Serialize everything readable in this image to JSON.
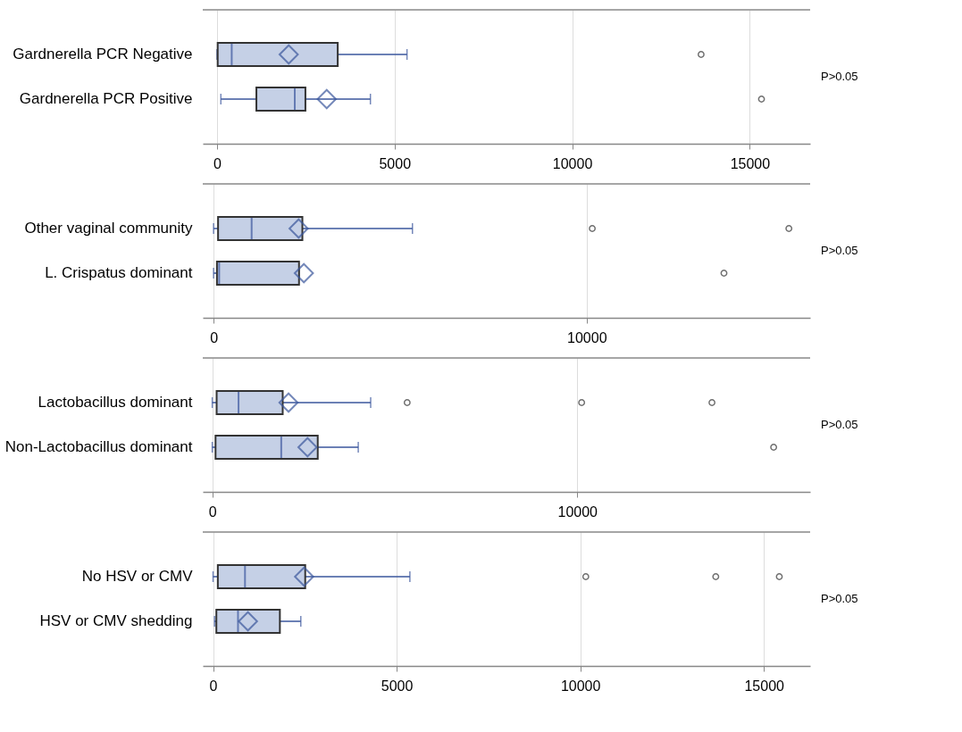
{
  "chart_data": [
    {
      "type": "box",
      "orientation": "horizontal",
      "categories": [
        "Gardnerella PCR Negative",
        "Gardnerella PCR Positive"
      ],
      "xlim": [
        -400,
        16700
      ],
      "xticks": [
        0,
        5000,
        10000,
        15000
      ],
      "grid": "x",
      "annotations": [
        "P>0.05"
      ],
      "series": [
        {
          "color": "#c5d0e6",
          "boxes": [
            {
              "low": 0,
              "q1": 20,
              "median": 415,
              "q3": 3400,
              "high": 5350,
              "mean": 2020,
              "outliers": [
                13630
              ]
            },
            {
              "low": 110,
              "q1": 1110,
              "median": 2190,
              "q3": 2490,
              "high": 4320,
              "mean": 3090,
              "outliers": [
                15330
              ]
            }
          ]
        }
      ]
    },
    {
      "type": "box",
      "orientation": "horizontal",
      "categories": [
        "Other vaginal community",
        "L. Crispatus dominant"
      ],
      "xlim": [
        -290,
        15990
      ],
      "xticks": [
        0,
        10000
      ],
      "grid": "x",
      "annotations": [
        "P>0.05"
      ],
      "series": [
        {
          "color": "#c5d0e6",
          "boxes": [
            {
              "low": 0,
              "q1": 120,
              "median": 1020,
              "q3": 2380,
              "high": 5330,
              "mean": 2280,
              "outliers": [
                10150,
                15420
              ]
            },
            {
              "low": 0,
              "q1": 90,
              "median": 150,
              "q3": 2290,
              "high": 2290,
              "mean": 2420,
              "outliers": [
                13680
              ]
            }
          ]
        }
      ]
    },
    {
      "type": "box",
      "orientation": "horizontal",
      "categories": [
        "Lactobacillus dominant",
        "Non-Lactobacillus dominant"
      ],
      "xlim": [
        -260,
        16380
      ],
      "xticks": [
        0,
        10000
      ],
      "grid": "x",
      "annotations": [
        "P>0.05"
      ],
      "series": [
        {
          "color": "#c5d0e6",
          "boxes": [
            {
              "low": 0,
              "q1": 120,
              "median": 720,
              "q3": 1930,
              "high": 4340,
              "mean": 2090,
              "outliers": [
                5340,
                10120,
                13690
              ]
            },
            {
              "low": 0,
              "q1": 90,
              "median": 1890,
              "q3": 2890,
              "high": 4000,
              "mean": 2610,
              "outliers": [
                15380
              ]
            }
          ]
        }
      ]
    },
    {
      "type": "box",
      "orientation": "horizontal",
      "categories": [
        "No HSV or CMV",
        "HSV or CMV shedding"
      ],
      "xlim": [
        -280,
        16260
      ],
      "xticks": [
        0,
        5000,
        10000,
        15000
      ],
      "grid": "x",
      "annotations": [
        "P>0.05"
      ],
      "series": [
        {
          "color": "#c5d0e6",
          "boxes": [
            {
              "low": 0,
              "q1": 130,
              "median": 870,
              "q3": 2510,
              "high": 5360,
              "mean": 2480,
              "outliers": [
                10150,
                13690,
                15420
              ]
            },
            {
              "low": 40,
              "q1": 90,
              "median": 680,
              "q3": 1820,
              "high": 2390,
              "mean": 950
            }
          ]
        }
      ]
    }
  ]
}
